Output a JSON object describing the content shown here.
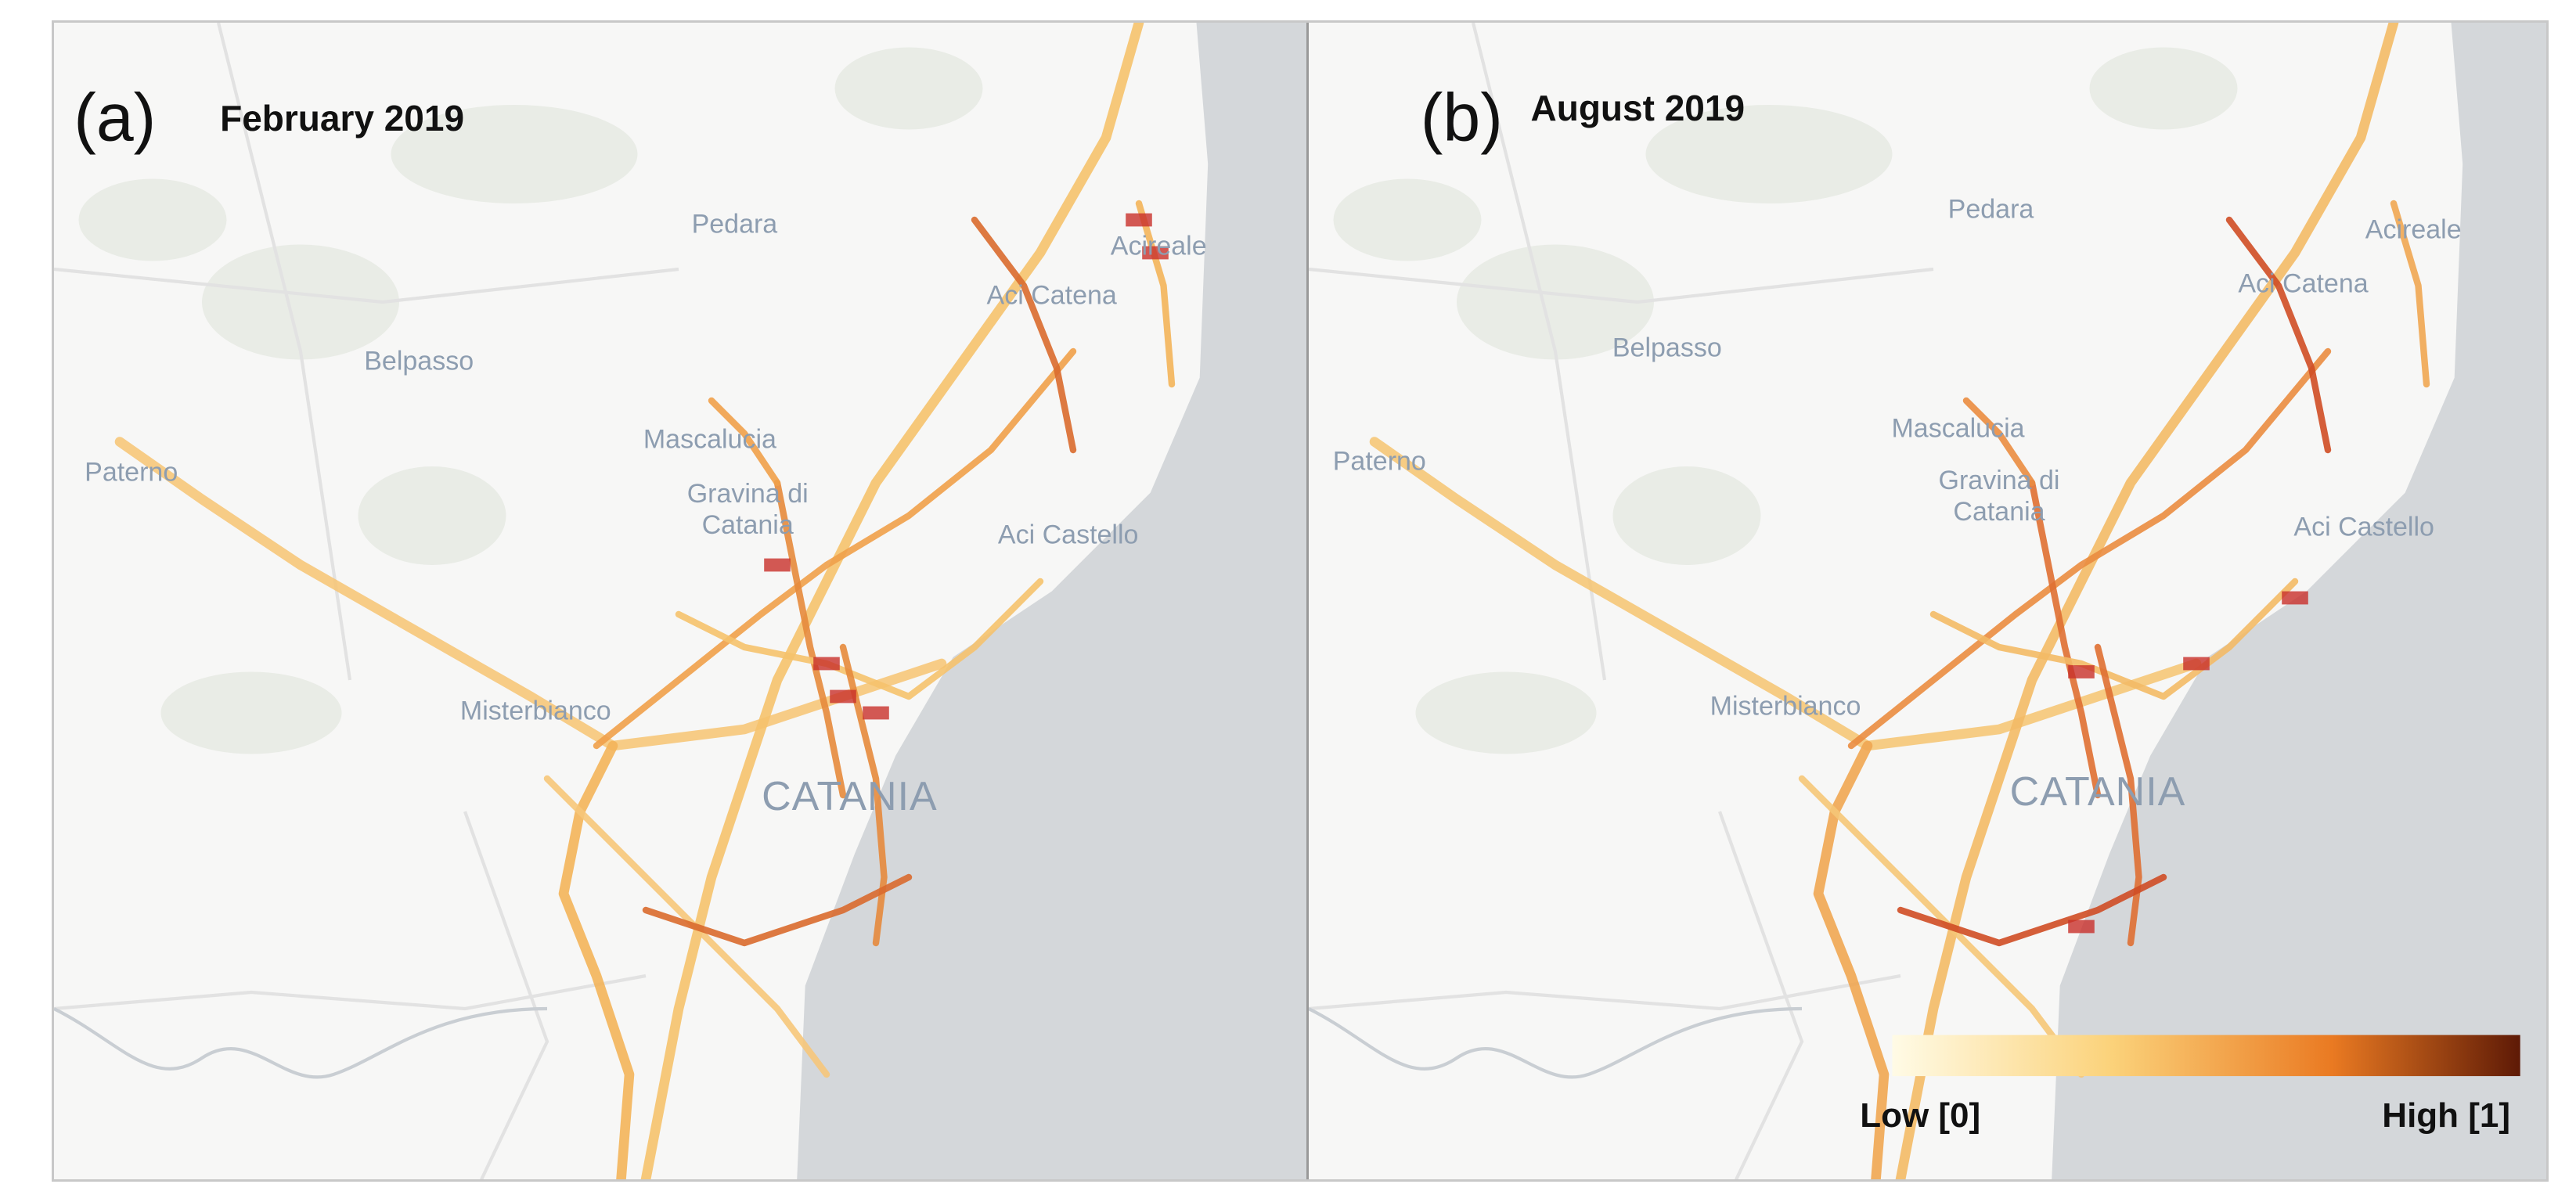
{
  "panels": [
    {
      "label": "(a)",
      "title": "February 2019",
      "places": [
        "Pedara",
        "Acireale",
        "Aci Catena",
        "Belpasso",
        "Mascalucia",
        "Gravina di Catania",
        "Paterno",
        "Aci Castello",
        "Misterbianco",
        "CATANIA"
      ]
    },
    {
      "label": "(b)",
      "title": "August 2019",
      "places": [
        "Pedara",
        "Acireale",
        "Aci Catena",
        "Belpasso",
        "Mascalucia",
        "Gravina di Catania",
        "Paterno",
        "Aci Castello",
        "Misterbianco",
        "CATANIA"
      ],
      "legend": {
        "low": "Low [0]",
        "high": "High [1]"
      }
    }
  ]
}
